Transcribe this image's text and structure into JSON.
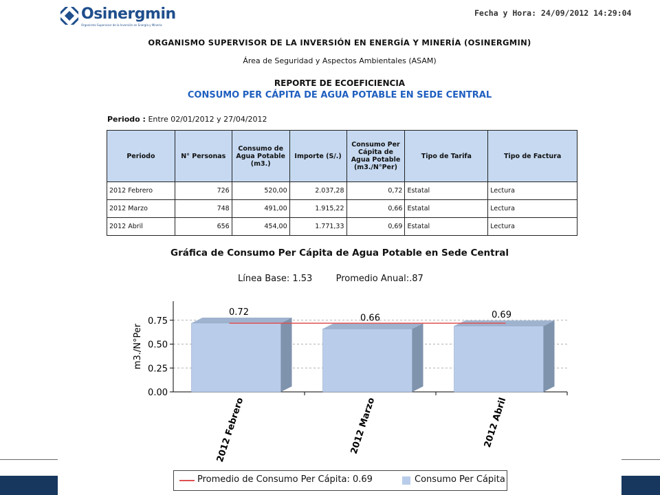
{
  "header": {
    "logo_text": "Osinergmin",
    "logo_subtitle": "Organismo Supervisor de la Inversión en Energía y Minería",
    "datetime": "Fecha y Hora: 24/09/2012 14:29:04"
  },
  "titles": {
    "organization": "ORGANISMO SUPERVISOR DE LA INVERSIÓN EN ENERGÍA Y MINERÍA (OSINERGMIN)",
    "area": "Área de Seguridad y Aspectos Ambientales (ASAM)",
    "report": "REPORTE DE ECOEFICIENCIA",
    "subject": "CONSUMO PER CÁPITA DE AGUA POTABLE EN SEDE CENTRAL"
  },
  "period": {
    "label": "Periodo  :",
    "value": "Entre 02/01/2012 y 27/04/2012"
  },
  "table": {
    "headers": [
      "Periodo",
      "N° Personas",
      "Consumo de Agua Potable (m3.)",
      "Importe (S/.)",
      "Consumo Per Cápita de Agua Potable (m3./N°Per)",
      "Tipo de Tarifa",
      "Tipo de Factura"
    ],
    "rows": [
      [
        "2012 Febrero",
        "726",
        "520,00",
        "2.037,28",
        "0,72",
        "Estatal",
        "Lectura"
      ],
      [
        "2012 Marzo",
        "748",
        "491,00",
        "1.915,22",
        "0,66",
        "Estatal",
        "Lectura"
      ],
      [
        "2012 Abril",
        "656",
        "454,00",
        "1.771,33",
        "0,69",
        "Estatal",
        "Lectura"
      ]
    ]
  },
  "chart_heading": {
    "title": "Gráfica de Consumo Per Cápita de Agua Potable en Sede Central",
    "baseline": "Línea Base: 1.53",
    "annual_avg": "Promedio Anual:.87"
  },
  "chart_data": {
    "type": "bar",
    "categories": [
      "2012 Febrero",
      "2012 Marzo",
      "2012 Abril"
    ],
    "values": [
      0.72,
      0.66,
      0.69
    ],
    "data_labels": [
      "0.72",
      "0.66",
      "0.69"
    ],
    "ylabel": "m3./N°Per",
    "ylim": [
      0,
      0.95
    ],
    "yticks": [
      0.0,
      0.25,
      0.5,
      0.75
    ],
    "ytick_labels": [
      "0.00",
      "0.25",
      "0.50",
      "0.75"
    ],
    "average_line": 0.69,
    "grid": true,
    "series": [
      {
        "name": "Consumo Per Cápita",
        "values": [
          0.72,
          0.66,
          0.69
        ],
        "color": "#b9cdea"
      },
      {
        "name": "Promedio de Consumo Per Cápita: 0.69",
        "type": "line",
        "values": [
          0.69,
          0.69,
          0.69
        ],
        "color": "#e05050"
      }
    ],
    "legend_position": "bottom"
  },
  "legend": {
    "line_label": "Promedio de Consumo Per Cápita: 0.69",
    "bar_label": "Consumo Per Cápita"
  },
  "colors": {
    "header_fill": "#c6d9f1",
    "bar_front": "#b9cdea",
    "bar_side": "#7f93ad",
    "avg_line": "#e05050",
    "title_blue": "#1f5fbf",
    "band": "#17375e"
  }
}
